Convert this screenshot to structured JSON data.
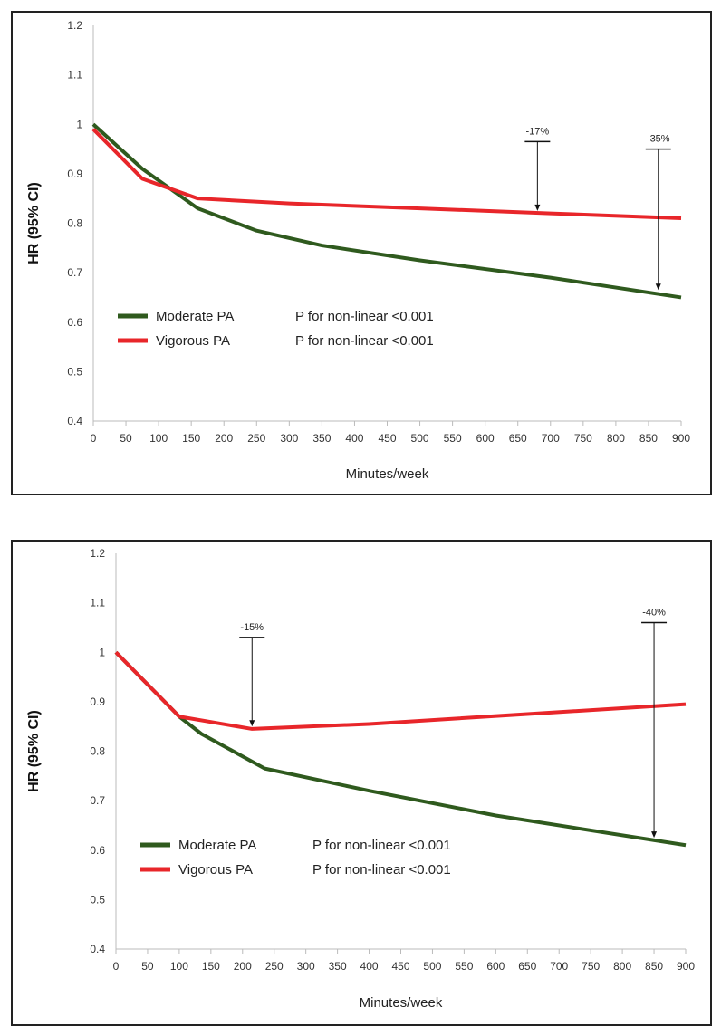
{
  "chart_data": [
    {
      "type": "line",
      "xlabel": "Minutes/week",
      "ylabel": "HR (95% CI)",
      "xlim": [
        0,
        900
      ],
      "ylim": [
        0.4,
        1.2
      ],
      "xticks": [
        "0",
        "50",
        "100",
        "150",
        "200",
        "250",
        "300",
        "350",
        "400",
        "450",
        "500",
        "550",
        "600",
        "650",
        "700",
        "750",
        "800",
        "850",
        "900"
      ],
      "yticks": [
        "0.4",
        "0.5",
        "0.6",
        "0.7",
        "0.8",
        "0.9",
        "1",
        "1.1",
        "1.2"
      ],
      "grid": false,
      "legend_position": "bottom-left",
      "series": [
        {
          "name": "Moderate PA",
          "note": "P for non-linear <0.001",
          "color": "#2f5a1e",
          "x": [
            0,
            75,
            160,
            250,
            350,
            500,
            700,
            900
          ],
          "y": [
            1.0,
            0.91,
            0.83,
            0.785,
            0.755,
            0.725,
            0.69,
            0.65
          ]
        },
        {
          "name": "Vigorous PA",
          "note": "P for non-linear <0.001",
          "color": "#e8262a",
          "x": [
            0,
            75,
            160,
            300,
            500,
            700,
            900
          ],
          "y": [
            0.99,
            0.89,
            0.85,
            0.84,
            0.83,
            0.82,
            0.81
          ]
        }
      ],
      "annotations": [
        {
          "text": "-17%",
          "x": 680,
          "y_from": 0.965,
          "y_to": 0.825
        },
        {
          "text": "-35%",
          "x": 865,
          "y_from": 0.95,
          "y_to": 0.665
        }
      ]
    },
    {
      "type": "line",
      "xlabel": "Minutes/week",
      "ylabel": "HR (95% CI)",
      "xlim": [
        0,
        900
      ],
      "ylim": [
        0.4,
        1.2
      ],
      "xticks": [
        "0",
        "50",
        "100",
        "150",
        "200",
        "250",
        "300",
        "350",
        "400",
        "450",
        "500",
        "550",
        "600",
        "650",
        "700",
        "750",
        "800",
        "850",
        "900"
      ],
      "yticks": [
        "0.4",
        "0.5",
        "0.6",
        "0.7",
        "0.8",
        "0.9",
        "1",
        "1.1",
        "1.2"
      ],
      "grid": false,
      "legend_position": "bottom-left",
      "series": [
        {
          "name": "Moderate PA",
          "note": "P for non-linear <0.001",
          "color": "#2f5a1e",
          "x": [
            0,
            100,
            135,
            235,
            400,
            600,
            900
          ],
          "y": [
            1.0,
            0.87,
            0.835,
            0.765,
            0.72,
            0.67,
            0.61
          ]
        },
        {
          "name": "Vigorous PA",
          "note": "P for non-linear <0.001",
          "color": "#e8262a",
          "x": [
            0,
            100,
            215,
            400,
            650,
            900
          ],
          "y": [
            1.0,
            0.87,
            0.845,
            0.855,
            0.875,
            0.895
          ]
        }
      ],
      "annotations": [
        {
          "text": "-15%",
          "x": 215,
          "y_from": 1.03,
          "y_to": 0.85
        },
        {
          "text": "-40%",
          "x": 850,
          "y_from": 1.06,
          "y_to": 0.625
        }
      ]
    }
  ]
}
